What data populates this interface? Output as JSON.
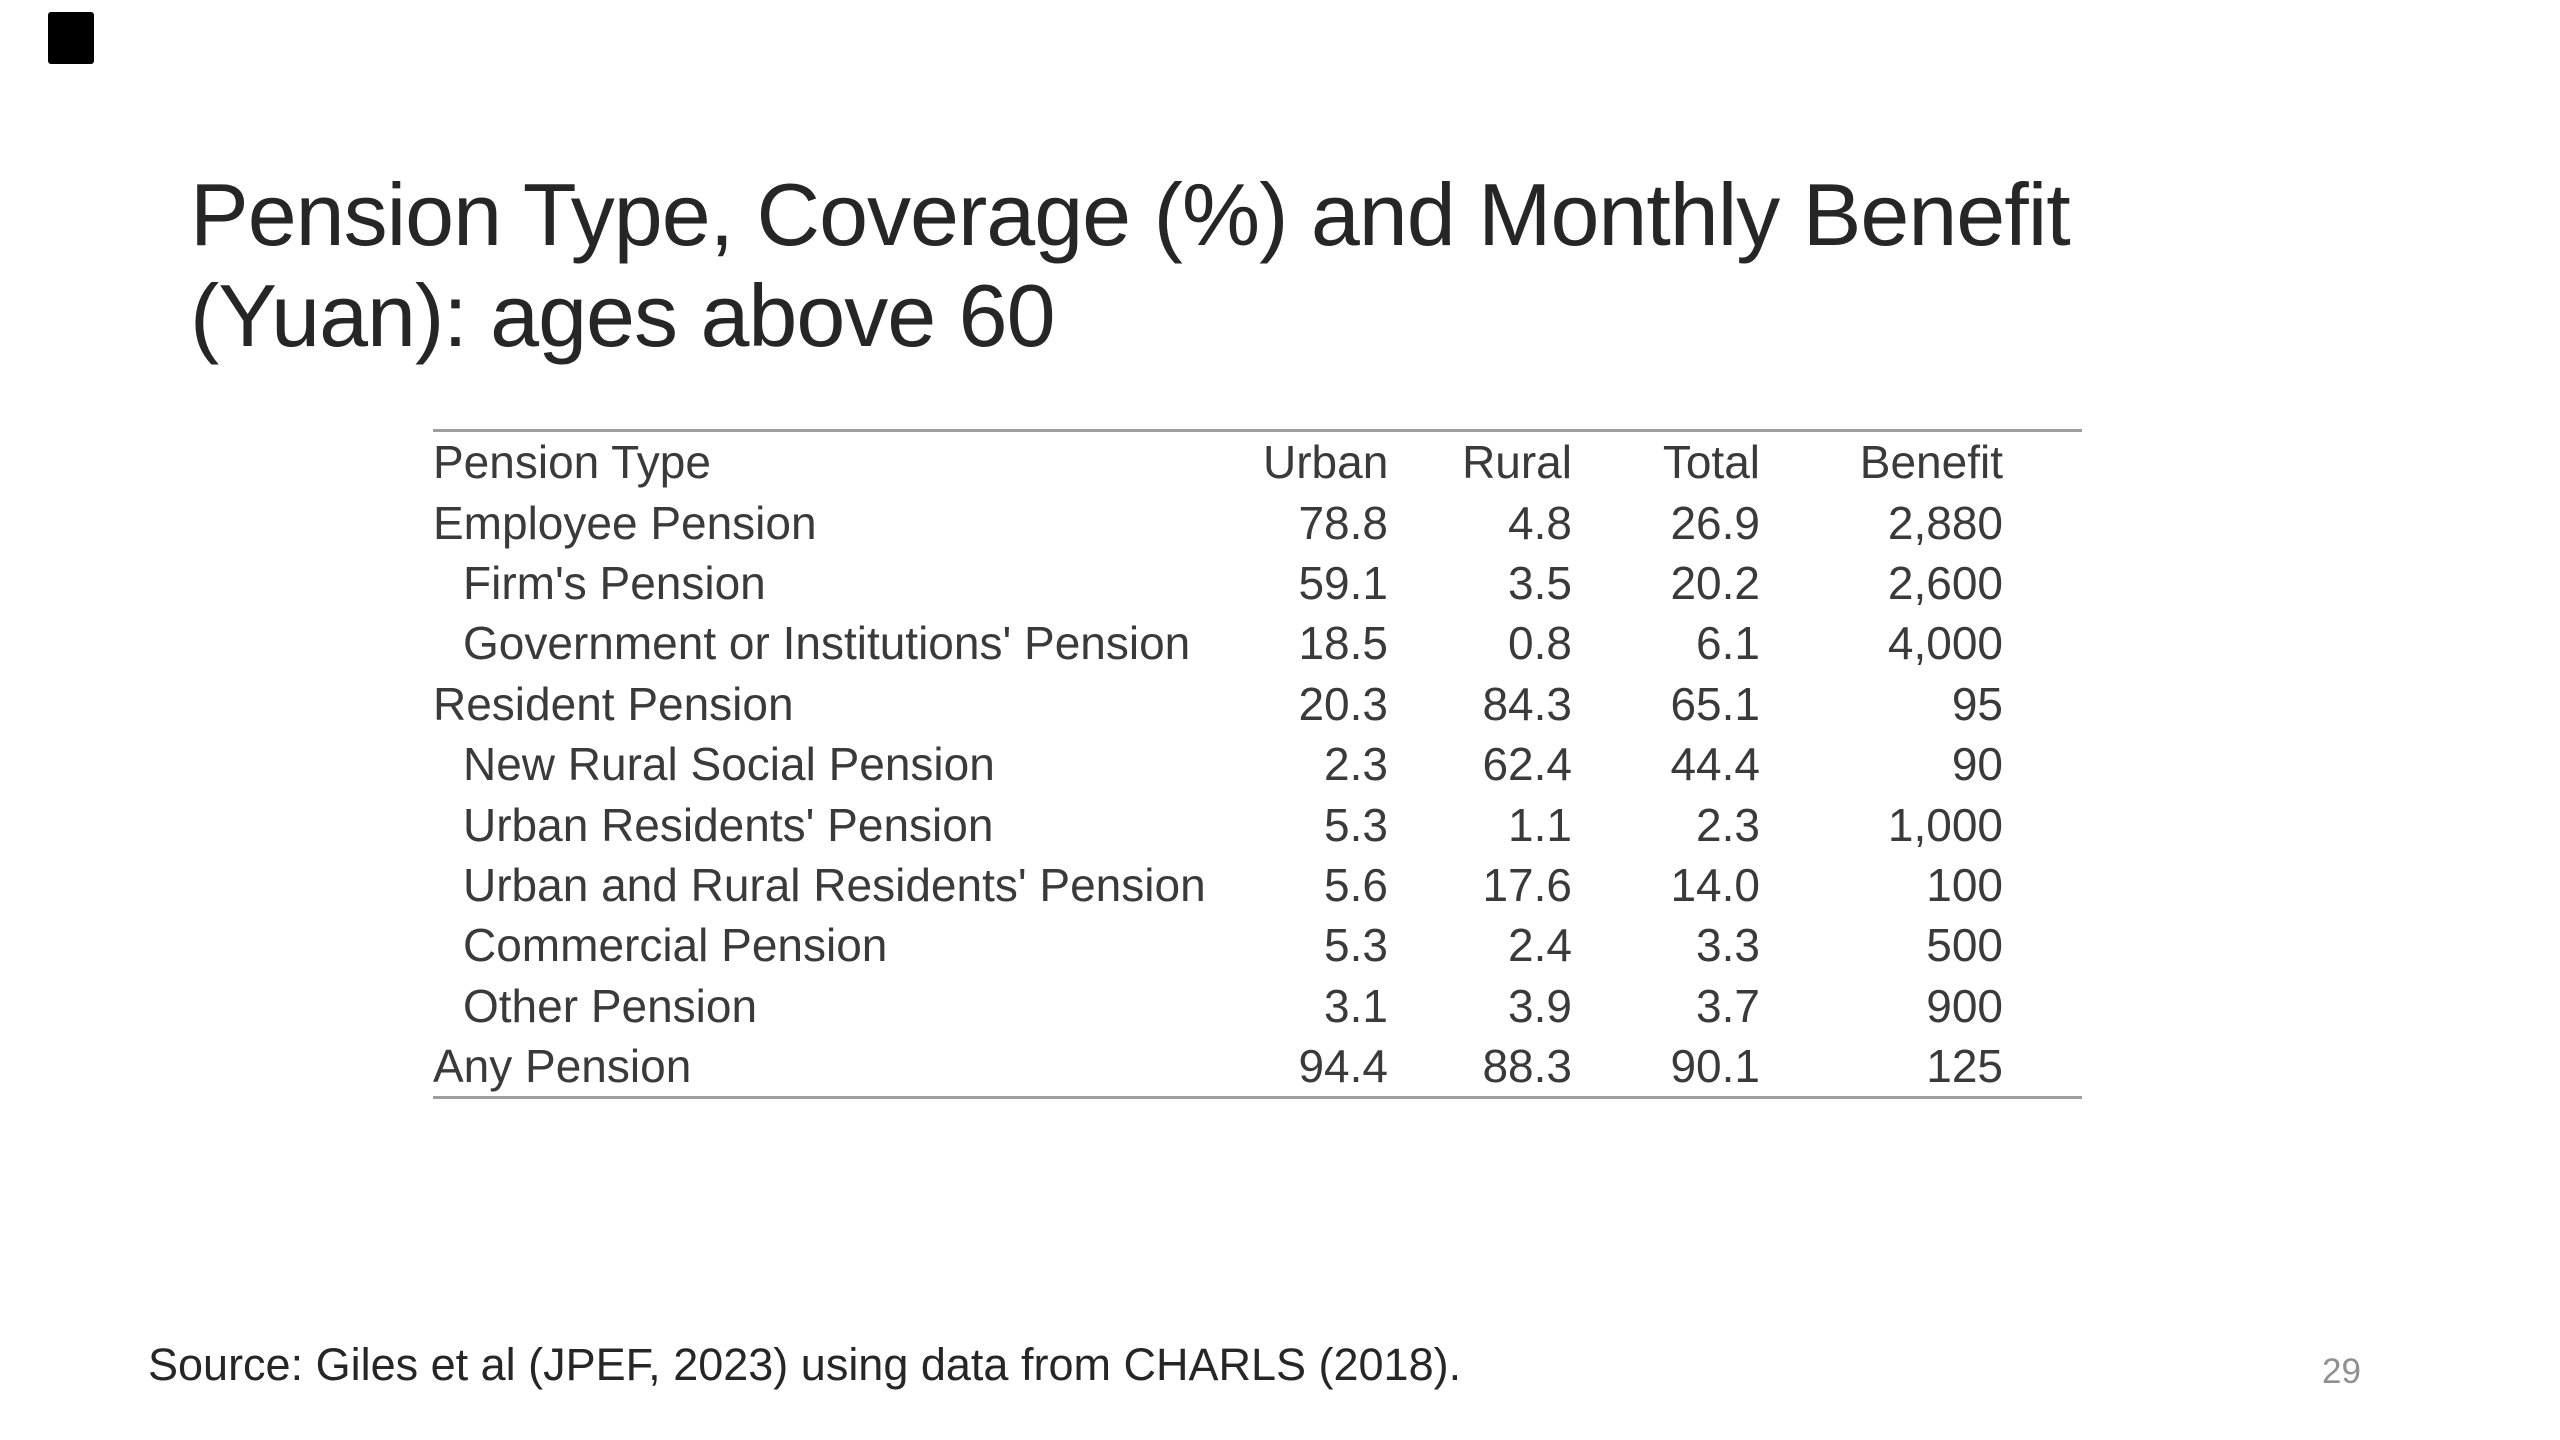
{
  "slide": {
    "title_line1": "Pension Type, Coverage (%) and Monthly Benefit",
    "title_line2": "(Yuan): ages above 60",
    "source_note": "Source: Giles et al (JPEF, 2023) using data from CHARLS (2018).",
    "page_number": "29"
  },
  "chart_data": {
    "type": "table",
    "title": "Pension Type, Coverage (%) and Monthly Benefit (Yuan): ages above 60",
    "columns": [
      "Pension Type",
      "Urban",
      "Rural",
      "Total",
      "Benefit"
    ],
    "rows": [
      {
        "label": "Employee Pension",
        "indent": false,
        "values": [
          "78.8",
          "4.8",
          "26.9",
          "2,880"
        ]
      },
      {
        "label": "Firm's Pension",
        "indent": true,
        "values": [
          "59.1",
          "3.5",
          "20.2",
          "2,600"
        ]
      },
      {
        "label": "Government or Institutions' Pension",
        "indent": true,
        "values": [
          "18.5",
          "0.8",
          "6.1",
          "4,000"
        ]
      },
      {
        "label": "Resident Pension",
        "indent": false,
        "values": [
          "20.3",
          "84.3",
          "65.1",
          "95"
        ]
      },
      {
        "label": "New Rural Social Pension",
        "indent": true,
        "values": [
          "2.3",
          "62.4",
          "44.4",
          "90"
        ]
      },
      {
        "label": "Urban Residents' Pension",
        "indent": true,
        "values": [
          "5.3",
          "1.1",
          "2.3",
          "1,000"
        ]
      },
      {
        "label": "Urban and Rural Residents' Pension",
        "indent": true,
        "values": [
          "5.6",
          "17.6",
          "14.0",
          "100"
        ]
      },
      {
        "label": "Commercial Pension",
        "indent": true,
        "values": [
          "5.3",
          "2.4",
          "3.3",
          "500"
        ]
      },
      {
        "label": "Other Pension",
        "indent": true,
        "values": [
          "3.1",
          "3.9",
          "3.7",
          "900"
        ]
      },
      {
        "label": "Any Pension",
        "indent": false,
        "values": [
          "94.4",
          "88.3",
          "90.1",
          "125"
        ]
      }
    ]
  },
  "colors": {
    "text": "#3a3a3a",
    "title": "#262626",
    "rule": "#9e9e9e",
    "page_number": "#909090",
    "corner_marker": "#000000"
  }
}
